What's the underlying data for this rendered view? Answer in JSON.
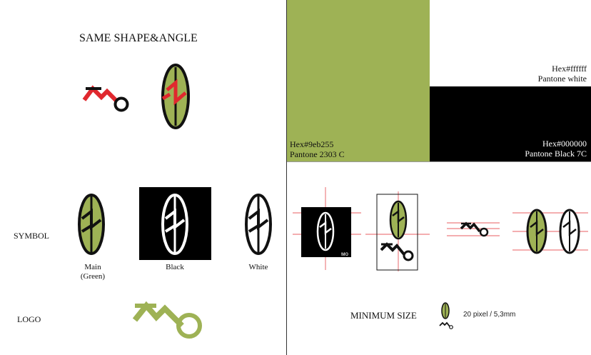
{
  "headings": {
    "same_shape": "SAME SHAPE&ANGLE",
    "symbol": "SYMBOL",
    "logo": "LOGO",
    "minimum_size": "MINIMUM SIZE"
  },
  "variants": {
    "main": "Main",
    "main_sub": "(Green)",
    "black": "Black",
    "white": "White"
  },
  "swatches": {
    "green": {
      "hex_label": "Hex#9eb255",
      "pantone": "Pantone 2303 C",
      "color": "#9eb255"
    },
    "white": {
      "hex_label": "Hex#ffffff",
      "pantone": "Pantone white",
      "color": "#ffffff"
    },
    "black": {
      "hex_label": "Hex#000000",
      "pantone": "Pantone Black 7C",
      "color": "#000000"
    }
  },
  "minimum_size_note": "20 pixel / 5,3mm",
  "accent_red": "#e0282e"
}
